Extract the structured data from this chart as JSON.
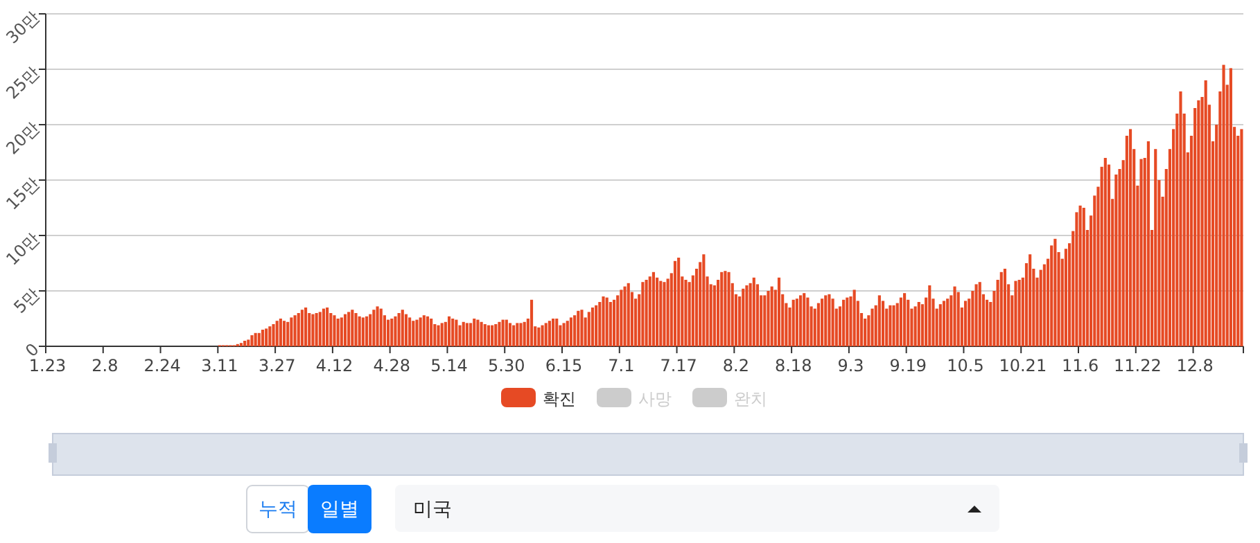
{
  "chart_data": {
    "type": "bar",
    "categories": [
      "1.23",
      null,
      null,
      null,
      null,
      null,
      null,
      null,
      null,
      null,
      null,
      null,
      null,
      null,
      null,
      null,
      "2.8",
      null,
      null,
      null,
      null,
      null,
      null,
      null,
      null,
      null,
      null,
      null,
      null,
      null,
      null,
      null,
      "2.24",
      null,
      null,
      null,
      null,
      null,
      null,
      null,
      null,
      null,
      null,
      null,
      null,
      null,
      null,
      null,
      "3.11",
      null,
      null,
      null,
      null,
      null,
      null,
      null,
      null,
      null,
      null,
      null,
      null,
      null,
      null,
      null,
      "3.27",
      null,
      null,
      null,
      null,
      null,
      null,
      null,
      null,
      null,
      null,
      null,
      null,
      null,
      null,
      null,
      "4.12",
      null,
      null,
      null,
      null,
      null,
      null,
      null,
      null,
      null,
      null,
      null,
      null,
      null,
      null,
      null,
      "4.28",
      null,
      null,
      null,
      null,
      null,
      null,
      null,
      null,
      null,
      null,
      null,
      null,
      null,
      null,
      null,
      "5.14",
      null,
      null,
      null,
      null,
      null,
      null,
      null,
      null,
      null,
      null,
      null,
      null,
      null,
      null,
      null,
      "5.30",
      null,
      null,
      null,
      null,
      null,
      null,
      null,
      null,
      null,
      null,
      null,
      null,
      null,
      null,
      null,
      "6.15",
      null,
      null,
      null,
      null,
      null,
      null,
      null,
      null,
      null,
      null,
      null,
      null,
      null,
      null,
      null,
      "7.1",
      null,
      null,
      null,
      null,
      null,
      null,
      null,
      null,
      null,
      null,
      null,
      null,
      null,
      null,
      null,
      "7.17",
      null,
      null,
      null,
      null,
      null,
      null,
      null,
      null,
      null,
      null,
      null,
      null,
      null,
      null,
      null,
      "8.2",
      null,
      null,
      null,
      null,
      null,
      null,
      null,
      null,
      null,
      null,
      null,
      null,
      null,
      null,
      null,
      "8.18",
      null,
      null,
      null,
      null,
      null,
      null,
      null,
      null,
      null,
      null,
      null,
      null,
      null,
      null,
      null,
      "9.3",
      null,
      null,
      null,
      null,
      null,
      null,
      null,
      null,
      null,
      null,
      null,
      null,
      null,
      null,
      null,
      "9.19",
      null,
      null,
      null,
      null,
      null,
      null,
      null,
      null,
      null,
      null,
      null,
      null,
      null,
      null,
      null,
      "10.5",
      null,
      null,
      null,
      null,
      null,
      null,
      null,
      null,
      null,
      null,
      null,
      null,
      null,
      null,
      null,
      "10.21",
      null,
      null,
      null,
      null,
      null,
      null,
      null,
      null,
      null,
      null,
      null,
      null,
      null,
      null,
      null,
      "11.6",
      null,
      null,
      null,
      null,
      null,
      null,
      null,
      null,
      null,
      null,
      null,
      null,
      null,
      null,
      null,
      "11.22",
      null,
      null,
      null,
      null,
      null,
      null,
      null,
      null,
      null,
      null,
      null,
      null,
      null,
      null,
      null,
      "12.8",
      null,
      null,
      null,
      null,
      null,
      null,
      null,
      null,
      null,
      null,
      null,
      null,
      null
    ],
    "series": [
      {
        "name": "확진",
        "color": "#e64a24",
        "values": [
          0,
          0,
          0,
          0,
          0,
          0,
          0,
          0,
          0,
          0,
          0,
          0,
          0,
          0,
          0,
          0,
          0,
          0,
          0,
          0,
          0,
          0,
          0,
          0,
          0,
          0,
          0,
          0,
          0,
          0,
          0,
          0,
          0,
          0,
          0,
          0,
          0,
          0,
          0,
          0,
          0,
          0,
          0,
          0,
          0,
          0,
          0,
          0,
          0.1,
          0.1,
          0.1,
          0.1,
          0.1,
          0.2,
          0.3,
          0.5,
          0.6,
          1,
          1.2,
          1.2,
          1.5,
          1.6,
          1.8,
          2,
          2.3,
          2.5,
          2.3,
          2.2,
          2.6,
          2.8,
          3,
          3.3,
          3.5,
          3,
          2.9,
          3,
          3.1,
          3.4,
          3.5,
          3,
          2.8,
          2.5,
          2.6,
          2.9,
          3.1,
          3.3,
          3,
          2.7,
          2.6,
          2.7,
          2.9,
          3.3,
          3.6,
          3.4,
          2.8,
          2.4,
          2.5,
          2.7,
          3,
          3.3,
          2.9,
          2.6,
          2.3,
          2.4,
          2.6,
          2.8,
          2.7,
          2.5,
          2,
          1.9,
          2.1,
          2.2,
          2.7,
          2.5,
          2.4,
          1.9,
          2.2,
          2.1,
          2.1,
          2.5,
          2.4,
          2.2,
          2,
          1.9,
          1.9,
          2,
          2.2,
          2.4,
          2.4,
          2.1,
          1.9,
          2.1,
          2.1,
          2.2,
          2.5,
          4.2,
          1.8,
          1.7,
          1.9,
          2.1,
          2.3,
          2.5,
          2.5,
          1.9,
          2.1,
          2.3,
          2.6,
          2.8,
          3.2,
          3.3,
          2.6,
          3.1,
          3.5,
          3.7,
          4,
          4.5,
          4.4,
          4,
          4.2,
          4.6,
          5.1,
          5.4,
          5.7,
          4.9,
          4.3,
          4.7,
          5.8,
          6,
          6.3,
          6.7,
          6.2,
          5.9,
          5.8,
          6.1,
          6.6,
          7.7,
          8,
          6.3,
          6,
          5.8,
          6.4,
          7,
          7.6,
          8.3,
          6.3,
          5.6,
          5.5,
          6,
          6.7,
          6.8,
          6.7,
          5.7,
          4.7,
          4.5,
          5.2,
          5.5,
          5.7,
          6.2,
          5.6,
          4.6,
          4.6,
          5,
          5.4,
          5.1,
          6.2,
          4.7,
          3.9,
          3.5,
          4.2,
          4.3,
          4.6,
          4.8,
          4.4,
          3.6,
          3.4,
          3.9,
          4.3,
          4.6,
          4.7,
          4.3,
          3.4,
          3.6,
          4.2,
          4.4,
          4.5,
          5.1,
          4.1,
          3,
          2.5,
          2.8,
          3.4,
          3.7,
          4.6,
          4.1,
          3.4,
          3.7,
          3.7,
          3.9,
          4.4,
          4.8,
          4.2,
          3.4,
          3.6,
          4,
          3.8,
          4.4,
          5.5,
          4.3,
          3.4,
          3.8,
          4.1,
          4.3,
          4.6,
          5.4,
          4.9,
          3.5,
          4.1,
          4.3,
          5,
          5.6,
          5.8,
          4.7,
          4.2,
          4,
          5,
          6,
          6.7,
          7,
          5.6,
          4.6,
          5.9,
          6,
          6.2,
          7.5,
          8.3,
          7,
          6.2,
          6.9,
          7.4,
          7.9,
          9.1,
          9.7,
          8.5,
          7.9,
          8.8,
          9.3,
          10.4,
          12.1,
          12.7,
          12.5,
          10.5,
          11.8,
          13.6,
          14.4,
          16.2,
          17,
          16.4,
          13.3,
          15.5,
          16,
          16.8,
          19,
          19.6,
          17.8,
          14.5,
          16.9,
          17,
          18.5,
          10.5,
          17.8,
          15,
          13.5,
          16,
          17.8,
          19.6,
          21,
          23,
          21,
          17.5,
          19,
          21.5,
          22.2,
          22.5,
          24,
          21.8,
          18.5,
          20,
          23,
          25.4,
          23.6,
          25.1,
          19.8,
          19,
          19.6
        ]
      },
      {
        "name": "사망",
        "color": "#cccccc",
        "values": [
          null,
          null,
          null,
          null,
          null,
          null,
          null,
          null,
          null,
          null,
          null,
          null,
          null,
          null,
          null,
          null,
          null,
          null,
          null,
          null,
          null,
          null,
          null,
          null,
          null,
          null,
          null,
          null,
          null,
          null,
          null,
          null,
          null,
          null,
          null,
          null,
          null,
          null,
          null,
          null,
          null,
          null,
          null,
          null,
          null,
          null,
          null,
          null,
          null,
          null,
          null,
          null,
          null,
          null,
          null,
          null,
          null,
          null,
          null,
          null,
          null,
          null,
          null,
          null,
          null,
          null,
          null,
          null,
          null,
          null,
          null,
          null,
          null,
          null,
          null,
          null,
          null,
          null,
          null,
          null,
          null,
          null,
          null,
          null,
          null,
          null,
          null,
          null,
          null,
          null,
          null,
          null,
          null,
          null,
          null,
          null,
          null,
          null,
          null,
          null,
          null,
          null,
          null,
          null,
          null,
          null,
          null,
          null,
          null,
          null,
          null,
          null,
          null,
          null,
          null,
          null,
          null,
          null,
          null,
          null,
          null,
          null,
          null,
          null,
          null,
          null,
          null,
          null,
          null,
          null,
          null,
          null,
          null,
          null,
          null,
          null,
          null,
          null,
          null,
          null,
          null,
          null,
          null,
          null,
          null,
          null,
          null,
          null,
          null,
          null,
          null,
          null,
          null,
          null,
          null,
          null,
          null,
          null,
          null,
          null,
          null,
          null,
          null,
          null,
          null,
          null,
          null,
          null,
          null,
          null,
          null,
          null,
          null,
          null,
          null,
          null,
          null,
          null,
          null,
          null,
          null,
          null,
          null,
          null,
          null,
          null,
          null,
          null,
          null,
          null,
          null,
          null,
          null,
          null,
          null,
          null,
          null,
          null,
          null,
          null,
          null,
          null,
          null,
          null,
          null,
          null,
          null,
          null,
          null,
          null,
          null,
          null,
          null,
          null,
          null,
          null,
          null,
          null,
          null,
          null,
          null,
          null,
          null,
          null,
          null,
          null,
          null,
          null,
          null,
          null,
          null,
          null,
          null,
          null,
          null,
          null,
          null,
          null,
          null,
          null,
          null,
          null,
          null,
          null,
          null,
          null,
          null,
          null,
          null,
          null,
          null,
          null,
          null,
          null,
          null,
          null,
          null,
          null,
          null,
          null,
          null,
          null,
          null,
          null,
          null,
          null,
          null,
          null,
          null,
          null,
          null,
          null,
          null,
          null,
          null,
          null,
          null,
          null,
          null,
          null,
          null,
          null,
          null,
          null,
          null,
          null,
          null,
          null,
          null,
          null,
          null,
          null,
          null,
          null,
          null,
          null,
          null,
          null,
          null,
          null,
          null,
          null,
          null,
          null,
          null,
          null,
          null,
          null,
          null,
          null,
          null,
          null,
          null,
          null,
          null,
          null,
          null,
          null,
          null,
          null,
          null,
          null,
          null,
          null,
          null,
          null,
          null,
          null,
          null,
          null,
          null,
          null,
          null,
          null
        ]
      },
      {
        "name": "완치",
        "color": "#cccccc",
        "values": [
          null,
          null,
          null,
          null,
          null,
          null,
          null,
          null,
          null,
          null,
          null,
          null,
          null,
          null,
          null,
          null,
          null,
          null,
          null,
          null,
          null,
          null,
          null,
          null,
          null,
          null,
          null,
          null,
          null,
          null,
          null,
          null,
          null,
          null,
          null,
          null,
          null,
          null,
          null,
          null,
          null,
          null,
          null,
          null,
          null,
          null,
          null,
          null,
          null,
          null,
          null,
          null,
          null,
          null,
          null,
          null,
          null,
          null,
          null,
          null,
          null,
          null,
          null,
          null,
          null,
          null,
          null,
          null,
          null,
          null,
          null,
          null,
          null,
          null,
          null,
          null,
          null,
          null,
          null,
          null,
          null,
          null,
          null,
          null,
          null,
          null,
          null,
          null,
          null,
          null,
          null,
          null,
          null,
          null,
          null,
          null,
          null,
          null,
          null,
          null,
          null,
          null,
          null,
          null,
          null,
          null,
          null,
          null,
          null,
          null,
          null,
          null,
          null,
          null,
          null,
          null,
          null,
          null,
          null,
          null,
          null,
          null,
          null,
          null,
          null,
          null,
          null,
          null,
          null,
          null,
          null,
          null,
          null,
          null,
          null,
          null,
          null,
          null,
          null,
          null,
          null,
          null,
          null,
          null,
          null,
          null,
          null,
          null,
          null,
          null,
          null,
          null,
          null,
          null,
          null,
          null,
          null,
          null,
          null,
          null,
          null,
          null,
          null,
          null,
          null,
          null,
          null,
          null,
          null,
          null,
          null,
          null,
          null,
          null,
          null,
          null,
          null,
          null,
          null,
          null,
          null,
          null,
          null,
          null,
          null,
          null,
          null,
          null,
          null,
          null,
          null,
          null,
          null,
          null,
          null,
          null,
          null,
          null,
          null,
          null,
          null,
          null,
          null,
          null,
          null,
          null,
          null,
          null,
          null,
          null,
          null,
          null,
          null,
          null,
          null,
          null,
          null,
          null,
          null,
          null,
          null,
          null,
          null,
          null,
          null,
          null,
          null,
          null,
          null,
          null,
          null,
          null,
          null,
          null,
          null,
          null,
          null,
          null,
          null,
          null,
          null,
          null,
          null,
          null,
          null,
          null,
          null,
          null,
          null,
          null,
          null,
          null,
          null,
          null,
          null,
          null,
          null,
          null,
          null,
          null,
          null,
          null,
          null,
          null,
          null,
          null,
          null,
          null,
          null,
          null,
          null,
          null,
          null,
          null,
          null,
          null,
          null,
          null,
          null,
          null,
          null,
          null,
          null,
          null,
          null,
          null,
          null,
          null,
          null,
          null,
          null,
          null,
          null,
          null,
          null,
          null,
          null,
          null,
          null,
          null,
          null,
          null,
          null,
          null,
          null,
          null,
          null,
          null,
          null,
          null,
          null,
          null,
          null,
          null,
          null,
          null,
          null,
          null,
          null,
          null,
          null,
          null,
          null,
          null,
          null,
          null,
          null,
          null,
          null,
          null,
          null,
          null,
          null,
          null
        ]
      }
    ],
    "ylim": [
      0,
      30
    ],
    "yticks": [
      0,
      {
        "value": 5,
        "label": "5만"
      },
      {
        "value": 10,
        "label": "10만"
      },
      {
        "value": 15,
        "label": "15만"
      },
      {
        "value": 20,
        "label": "20만"
      },
      {
        "value": 25,
        "label": "25만"
      },
      {
        "value": 30,
        "label": "30만"
      }
    ],
    "grid": "y",
    "legend": "bottom",
    "annotations": [
      "누적",
      "일별",
      "미국"
    ]
  }
}
